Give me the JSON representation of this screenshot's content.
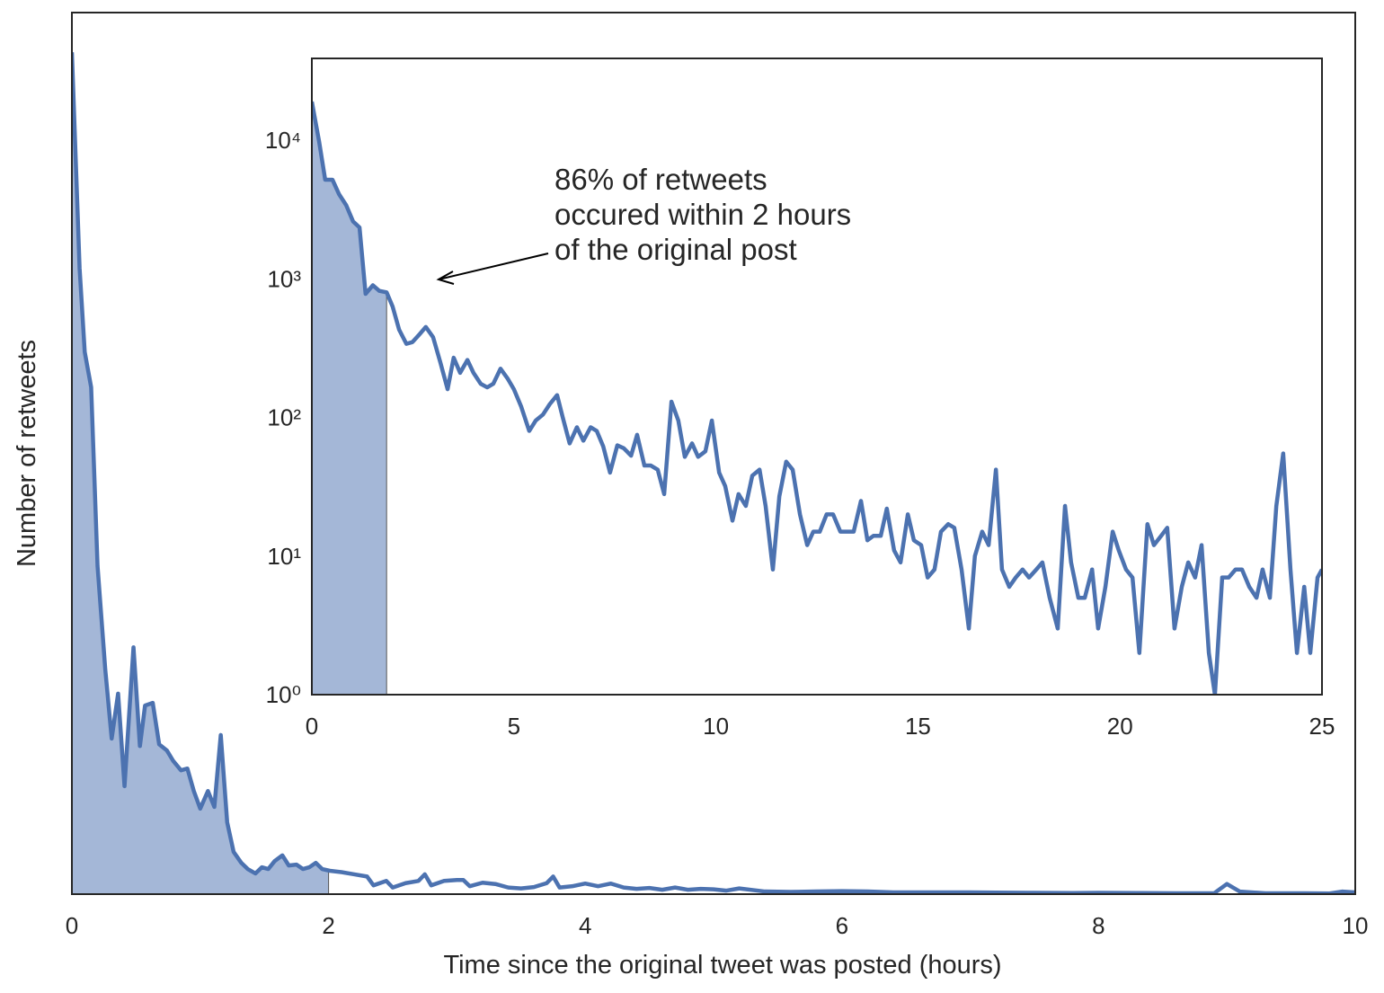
{
  "chart_data": [
    {
      "type": "line",
      "xlabel": "Time since the original tweet was posted (hours)",
      "ylabel": "Number of retweets",
      "color": "#4c72b0",
      "fill_color": "#a4b7d7",
      "shade_to": 2,
      "xlim": [
        0,
        10
      ],
      "xticks": [
        0,
        2,
        4,
        6,
        8,
        10
      ],
      "ylim": [
        0,
        20000
      ],
      "x": [
        0,
        0.06,
        0.1,
        0.15,
        0.2,
        0.26,
        0.31,
        0.36,
        0.41,
        0.48,
        0.53,
        0.57,
        0.63,
        0.68,
        0.74,
        0.79,
        0.85,
        0.9,
        0.95,
        1.0,
        1.06,
        1.11,
        1.16,
        1.21,
        1.26,
        1.32,
        1.37,
        1.43,
        1.48,
        1.53,
        1.58,
        1.64,
        1.69,
        1.75,
        1.8,
        1.85,
        1.9,
        1.95,
        2.01,
        2.1,
        2.2,
        2.3,
        2.35,
        2.45,
        2.5,
        2.6,
        2.7,
        2.75,
        2.8,
        2.9,
        3.0,
        3.05,
        3.1,
        3.2,
        3.3,
        3.4,
        3.5,
        3.6,
        3.7,
        3.75,
        3.8,
        3.9,
        4.0,
        4.1,
        4.2,
        4.3,
        4.4,
        4.5,
        4.6,
        4.7,
        4.8,
        4.9,
        5.0,
        5.1,
        5.2,
        5.4,
        5.6,
        5.8,
        6.0,
        6.2,
        6.4,
        6.6,
        6.8,
        7.0,
        7.2,
        7.5,
        7.8,
        8.0,
        8.3,
        8.6,
        8.9,
        9.0,
        9.1,
        9.3,
        9.6,
        9.8,
        9.9,
        10
      ],
      "values": [
        19100,
        14200,
        12300,
        11500,
        7440,
        5100,
        3530,
        4550,
        2450,
        5600,
        3360,
        4280,
        4340,
        3400,
        3260,
        3020,
        2810,
        2850,
        2340,
        1940,
        2340,
        1980,
        3610,
        1630,
        960,
        710,
        570,
        470,
        610,
        570,
        750,
        880,
        650,
        670,
        570,
        610,
        710,
        570,
        530,
        500,
        450,
        400,
        200,
        300,
        150,
        250,
        300,
        450,
        200,
        300,
        320,
        320,
        180,
        260,
        230,
        150,
        130,
        160,
        250,
        400,
        150,
        180,
        240,
        180,
        240,
        150,
        120,
        140,
        100,
        150,
        100,
        120,
        110,
        80,
        130,
        60,
        50,
        60,
        70,
        60,
        40,
        40,
        40,
        40,
        35,
        30,
        25,
        30,
        25,
        20,
        20,
        230,
        60,
        20,
        20,
        15,
        60,
        40
      ]
    },
    {
      "type": "line",
      "annotation": [
        "86% of retweets",
        "occured within 2 hours",
        "of the original post"
      ],
      "color": "#4c72b0",
      "fill_color": "#a4b7d7",
      "shade_to": 1.85,
      "yscale": "log",
      "xlim": [
        0,
        25
      ],
      "xticks": [
        0,
        5,
        10,
        15,
        20,
        25
      ],
      "ylim": [
        1,
        39000
      ],
      "yticks": [
        {
          "value": 1,
          "label": "10⁰"
        },
        {
          "value": 10,
          "label": "10¹"
        },
        {
          "value": 100,
          "label": "10²"
        },
        {
          "value": 1000,
          "label": "10³"
        },
        {
          "value": 10000,
          "label": "10⁴"
        }
      ],
      "x": [
        0,
        0.18,
        0.33,
        0.51,
        0.67,
        0.85,
        1.02,
        1.18,
        1.33,
        1.51,
        1.67,
        1.85,
        2.0,
        2.16,
        2.34,
        2.49,
        2.67,
        2.82,
        3.0,
        3.18,
        3.36,
        3.51,
        3.67,
        3.85,
        4.0,
        4.18,
        4.34,
        4.49,
        4.67,
        4.85,
        5.0,
        5.18,
        5.38,
        5.54,
        5.72,
        5.89,
        6.07,
        6.21,
        6.38,
        6.56,
        6.72,
        6.9,
        7.05,
        7.21,
        7.38,
        7.56,
        7.72,
        7.9,
        8.05,
        8.23,
        8.39,
        8.56,
        8.72,
        8.9,
        9.07,
        9.23,
        9.41,
        9.56,
        9.74,
        9.9,
        10.08,
        10.23,
        10.41,
        10.56,
        10.74,
        10.9,
        11.08,
        11.23,
        11.41,
        11.57,
        11.74,
        11.9,
        12.08,
        12.26,
        12.41,
        12.57,
        12.74,
        12.9,
        13.08,
        13.23,
        13.41,
        13.59,
        13.75,
        13.9,
        14.08,
        14.23,
        14.41,
        14.57,
        14.75,
        14.9,
        15.08,
        15.24,
        15.41,
        15.57,
        15.75,
        15.9,
        16.08,
        16.26,
        16.41,
        16.59,
        16.75,
        16.93,
        17.08,
        17.26,
        17.42,
        17.59,
        17.75,
        17.93,
        18.08,
        18.26,
        18.46,
        18.64,
        18.79,
        18.97,
        19.13,
        19.31,
        19.46,
        19.64,
        19.82,
        19.97,
        20.15,
        20.31,
        20.48,
        20.68,
        20.84,
        21.02,
        21.17,
        21.35,
        21.53,
        21.69,
        21.86,
        22.02,
        22.2,
        22.35,
        22.53,
        22.69,
        22.86,
        23.02,
        23.2,
        23.38,
        23.53,
        23.71,
        23.87,
        24.04,
        24.22,
        24.38,
        24.56,
        24.71,
        24.89,
        25.0
      ],
      "values": [
        19000,
        9800,
        5200,
        5200,
        4100,
        3400,
        2600,
        2350,
        780,
        900,
        820,
        800,
        630,
        430,
        340,
        350,
        400,
        450,
        380,
        250,
        160,
        270,
        210,
        260,
        210,
        175,
        165,
        175,
        225,
        190,
        160,
        120,
        80,
        95,
        105,
        125,
        145,
        100,
        65,
        85,
        68,
        85,
        80,
        62,
        40,
        63,
        60,
        53,
        75,
        45,
        45,
        42,
        28,
        130,
        95,
        52,
        65,
        52,
        57,
        95,
        40,
        32,
        18,
        28,
        23,
        38,
        42,
        23,
        8,
        27,
        48,
        42,
        20,
        12,
        15,
        15,
        20,
        20,
        15,
        15,
        15,
        25,
        13,
        14,
        14,
        22,
        11,
        9,
        20,
        13,
        12,
        7,
        8,
        15,
        17,
        16,
        8,
        3,
        10,
        15,
        12,
        42,
        8,
        6,
        7,
        8,
        7,
        8,
        9,
        5,
        3,
        23,
        9,
        5,
        5,
        8,
        3,
        6,
        15,
        11,
        8,
        7,
        2,
        17,
        12,
        14,
        16,
        3,
        6,
        9,
        7,
        12,
        2,
        1,
        7,
        7,
        8,
        8,
        6,
        5,
        8,
        5,
        23,
        55,
        8,
        2,
        6,
        2,
        7,
        8
      ]
    }
  ]
}
